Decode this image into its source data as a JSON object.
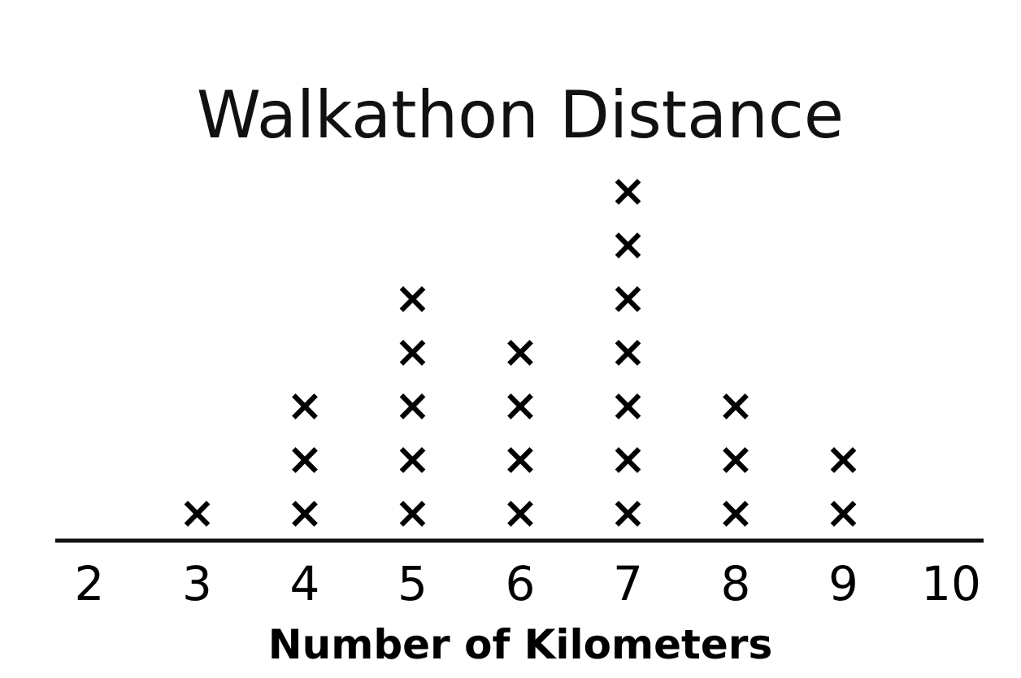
{
  "chart_data": {
    "type": "scatter",
    "subtype": "dot-plot",
    "title": "Walkathon Distance",
    "xlabel": "Number of Kilometers",
    "ylabel": "",
    "xlim": [
      2,
      10
    ],
    "ticks": [
      2,
      3,
      4,
      5,
      6,
      7,
      8,
      9,
      10
    ],
    "tick_labels": [
      "2",
      "3",
      "4",
      "5",
      "6",
      "7",
      "8",
      "9",
      "10"
    ],
    "marker": "×",
    "points": [
      {
        "x": 3,
        "count": 1
      },
      {
        "x": 4,
        "count": 3
      },
      {
        "x": 5,
        "count": 5
      },
      {
        "x": 6,
        "count": 4
      },
      {
        "x": 7,
        "count": 7
      },
      {
        "x": 8,
        "count": 3
      },
      {
        "x": 9,
        "count": 2
      }
    ],
    "grid": false,
    "legend": "none"
  }
}
